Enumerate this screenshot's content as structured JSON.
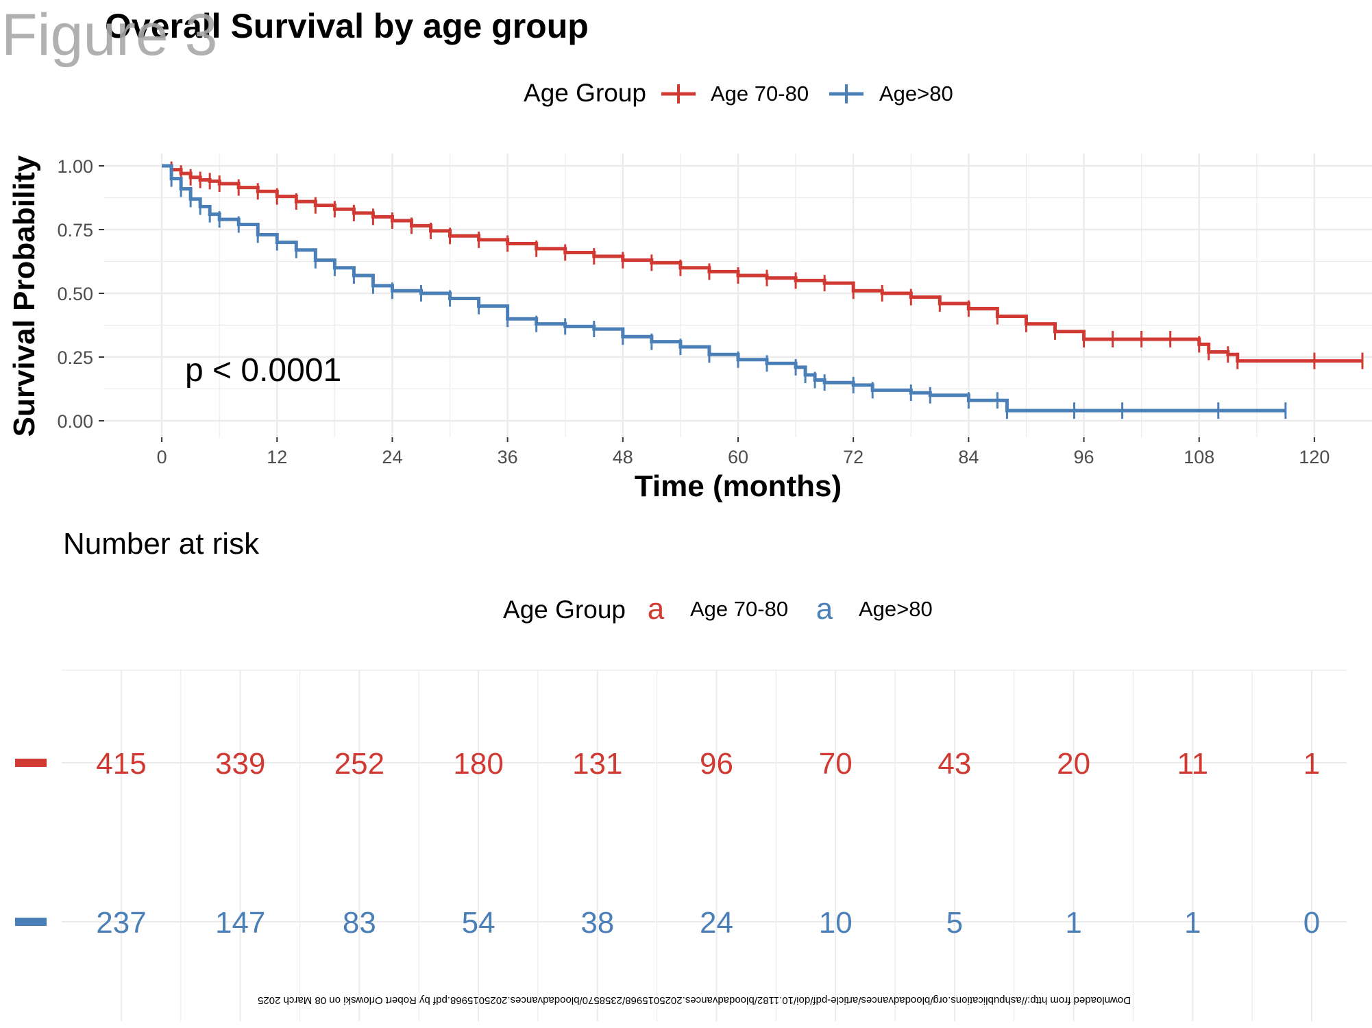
{
  "figure_label": "Figure 3",
  "footer_text": "Downloaded from http://ashpublications.org/bloodadvances/article-pdf/doi/10.1182/bloodadvances.2025015968/2358570/bloodadvances.2025015968.pdf by Robert Orlowski on 08 March 2025",
  "colors": {
    "age_70_80": "#d13a32",
    "age_80_plus": "#4a7fb8",
    "grid": "#ebebeb"
  },
  "chart_data": [
    {
      "type": "line",
      "subtype": "kaplan-meier",
      "title": "Overall Survival by age group",
      "xlabel": "Time (months)",
      "ylabel": "Survival Probability",
      "xlim": [
        -6,
        126
      ],
      "ylim": [
        0,
        1
      ],
      "x_ticks": [
        "0",
        "12",
        "24",
        "36",
        "48",
        "60",
        "72",
        "84",
        "96",
        "108",
        "120"
      ],
      "y_ticks": [
        "0.00",
        "0.25",
        "0.50",
        "0.75",
        "1.00"
      ],
      "grid": true,
      "legend": {
        "title": "Age Group",
        "position": "top"
      },
      "annotation": "p < 0.0001",
      "series": [
        {
          "name": "Age 70-80",
          "color": "#d13a32",
          "x": [
            0,
            1,
            2,
            3,
            4,
            5,
            6,
            8,
            10,
            12,
            14,
            16,
            18,
            20,
            22,
            24,
            26,
            28,
            30,
            33,
            36,
            39,
            42,
            45,
            48,
            51,
            54,
            57,
            60,
            63,
            66,
            69,
            72,
            75,
            78,
            81,
            84,
            87,
            90,
            93,
            96,
            99,
            102,
            105,
            108,
            109,
            111,
            112,
            120,
            125
          ],
          "y": [
            1.0,
            0.985,
            0.97,
            0.955,
            0.945,
            0.94,
            0.93,
            0.915,
            0.9,
            0.88,
            0.86,
            0.845,
            0.83,
            0.815,
            0.8,
            0.785,
            0.765,
            0.745,
            0.725,
            0.71,
            0.695,
            0.675,
            0.66,
            0.645,
            0.63,
            0.62,
            0.6,
            0.585,
            0.57,
            0.56,
            0.55,
            0.54,
            0.51,
            0.5,
            0.485,
            0.46,
            0.44,
            0.41,
            0.38,
            0.35,
            0.32,
            0.32,
            0.32,
            0.32,
            0.3,
            0.27,
            0.26,
            0.235,
            0.235,
            0.235
          ]
        },
        {
          "name": "Age>80",
          "color": "#4a7fb8",
          "x": [
            0,
            1,
            2,
            3,
            4,
            5,
            6,
            8,
            10,
            12,
            14,
            16,
            18,
            20,
            22,
            24,
            27,
            30,
            33,
            36,
            39,
            42,
            45,
            48,
            51,
            54,
            57,
            60,
            63,
            66,
            67,
            68,
            69,
            72,
            74,
            78,
            80,
            84,
            87,
            88,
            95,
            100,
            110,
            117
          ],
          "y": [
            1.0,
            0.95,
            0.91,
            0.87,
            0.84,
            0.81,
            0.79,
            0.77,
            0.73,
            0.7,
            0.67,
            0.63,
            0.6,
            0.57,
            0.53,
            0.51,
            0.5,
            0.48,
            0.45,
            0.4,
            0.38,
            0.37,
            0.36,
            0.33,
            0.31,
            0.29,
            0.26,
            0.24,
            0.225,
            0.21,
            0.18,
            0.16,
            0.15,
            0.14,
            0.12,
            0.11,
            0.1,
            0.08,
            0.08,
            0.04,
            0.04,
            0.04,
            0.04,
            0.04
          ]
        }
      ]
    },
    {
      "type": "table",
      "title": "Number at risk",
      "legend": {
        "title": "Age Group",
        "position": "top",
        "symbol": "a"
      },
      "x": [
        0,
        12,
        24,
        36,
        48,
        60,
        72,
        84,
        96,
        108,
        120
      ],
      "series": [
        {
          "name": "Age 70-80",
          "color": "#d13a32",
          "values": [
            415,
            339,
            252,
            180,
            131,
            96,
            70,
            43,
            20,
            11,
            1
          ]
        },
        {
          "name": "Age>80",
          "color": "#4a7fb8",
          "values": [
            237,
            147,
            83,
            54,
            38,
            24,
            10,
            5,
            1,
            1,
            0
          ]
        }
      ]
    }
  ]
}
